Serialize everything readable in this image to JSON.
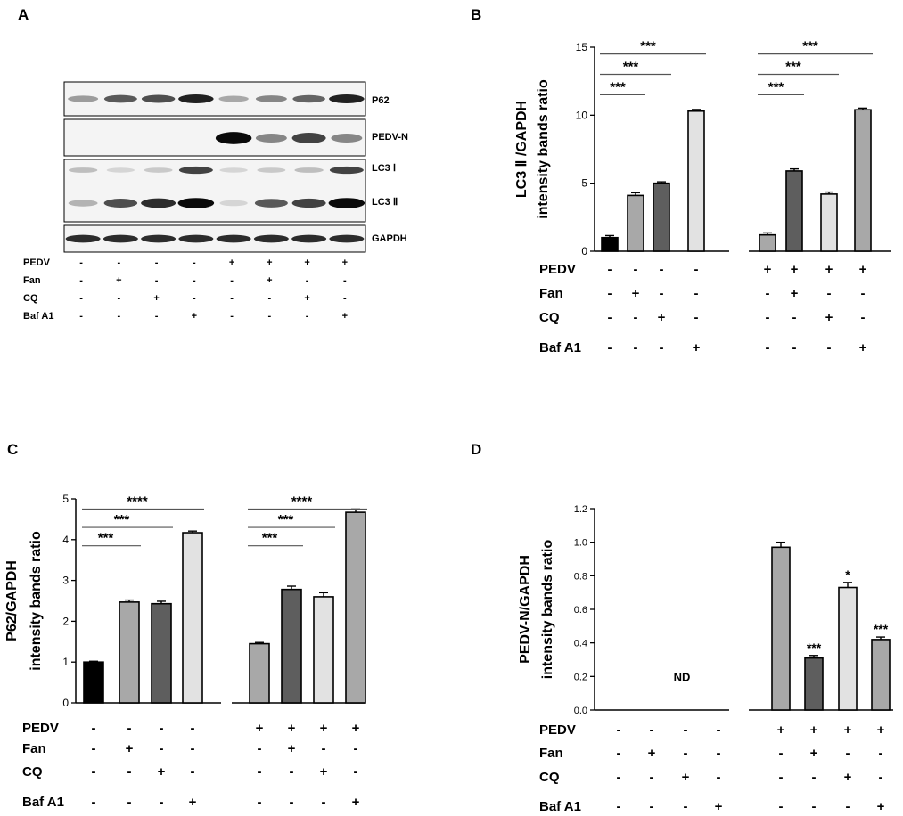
{
  "panels": {
    "A": {
      "letter": "A",
      "blot_labels": [
        "P62",
        "PEDV-N",
        "LC3 Ⅰ",
        "LC3 Ⅱ",
        "GAPDH"
      ],
      "conditions": [
        "PEDV",
        "Fan",
        "CQ",
        "Baf A1"
      ],
      "signs": [
        [
          "-",
          "-",
          "-",
          "-",
          "+",
          "+",
          "+",
          "+"
        ],
        [
          "-",
          "+",
          "-",
          "-",
          "-",
          "+",
          "-",
          "-"
        ],
        [
          "-",
          "-",
          "+",
          "-",
          "-",
          "-",
          "+",
          "-"
        ],
        [
          "-",
          "-",
          "-",
          "+",
          "-",
          "-",
          "-",
          "+"
        ]
      ],
      "band_intensity": {
        "P62": [
          0.35,
          0.65,
          0.7,
          0.9,
          0.3,
          0.45,
          0.6,
          0.9
        ],
        "PEDV-N": [
          0.02,
          0.02,
          0.02,
          0.02,
          1.0,
          0.45,
          0.75,
          0.45
        ],
        "LC3 Ⅰ": [
          0.2,
          0.1,
          0.15,
          0.75,
          0.1,
          0.15,
          0.2,
          0.75
        ],
        "LC3 Ⅱ": [
          0.25,
          0.7,
          0.85,
          1.0,
          0.1,
          0.65,
          0.75,
          1.0
        ],
        "GAPDH": [
          0.85,
          0.85,
          0.85,
          0.85,
          0.85,
          0.85,
          0.85,
          0.85
        ]
      }
    }
  },
  "chart_data": [
    {
      "panel": "B",
      "type": "bar",
      "ylabel": [
        "LC3 Ⅱ /GAPDH",
        "intensity bands ratio"
      ],
      "ylim": [
        0,
        15
      ],
      "yticks": [
        "0",
        "5",
        "10",
        "15"
      ],
      "values": [
        1.0,
        4.1,
        5.0,
        10.3,
        1.2,
        5.9,
        4.2,
        10.4
      ],
      "errors": [
        0.15,
        0.2,
        0.1,
        0.12,
        0.15,
        0.15,
        0.15,
        0.12
      ],
      "colors": [
        "#000000",
        "#a8a8a8",
        "#5e5e5e",
        "#e2e2e2",
        "#a8a8a8",
        "#5e5e5e",
        "#e2e2e2",
        "#a8a8a8"
      ],
      "bar_labels": [
        "",
        "",
        "",
        "",
        "",
        "",
        "",
        ""
      ],
      "brackets": [
        {
          "from": 0,
          "to": 1,
          "level": 11.5,
          "label": "***"
        },
        {
          "from": 0,
          "to": 2,
          "level": 13.0,
          "label": "***"
        },
        {
          "from": 0,
          "to": 3,
          "level": 14.5,
          "label": "***"
        },
        {
          "from": 4,
          "to": 5,
          "level": 11.5,
          "label": "***"
        },
        {
          "from": 4,
          "to": 6,
          "level": 13.0,
          "label": "***"
        },
        {
          "from": 4,
          "to": 7,
          "level": 14.5,
          "label": "***"
        }
      ],
      "center_note": "",
      "conditions": [
        "PEDV",
        "Fan",
        "CQ",
        "Baf A1"
      ],
      "signs": [
        [
          "-",
          "-",
          "-",
          "-",
          "+",
          "+",
          "+",
          "+"
        ],
        [
          "-",
          "+",
          "-",
          "-",
          "-",
          "+",
          "-",
          "-"
        ],
        [
          "-",
          "-",
          "+",
          "-",
          "-",
          "-",
          "+",
          "-"
        ],
        [
          "-",
          "-",
          "-",
          "+",
          "-",
          "-",
          "-",
          "+"
        ]
      ]
    },
    {
      "panel": "C",
      "type": "bar",
      "ylabel": [
        "P62/GAPDH",
        "intensity bands ratio"
      ],
      "ylim": [
        0,
        5
      ],
      "yticks": [
        "0",
        "1",
        "2",
        "3",
        "4",
        "5"
      ],
      "values": [
        1.0,
        2.47,
        2.43,
        4.17,
        1.45,
        2.78,
        2.6,
        4.67
      ],
      "errors": [
        0.02,
        0.05,
        0.06,
        0.04,
        0.03,
        0.08,
        0.1,
        0.08
      ],
      "colors": [
        "#000000",
        "#a8a8a8",
        "#5e5e5e",
        "#e2e2e2",
        "#a8a8a8",
        "#5e5e5e",
        "#e2e2e2",
        "#a8a8a8"
      ],
      "bar_labels": [
        "",
        "",
        "",
        "",
        "",
        "",
        "",
        ""
      ],
      "brackets": [
        {
          "from": 0,
          "to": 1,
          "level": 3.85,
          "label": "***"
        },
        {
          "from": 0,
          "to": 2,
          "level": 4.3,
          "label": "***"
        },
        {
          "from": 0,
          "to": 3,
          "level": 4.75,
          "label": "****"
        },
        {
          "from": 4,
          "to": 5,
          "level": 3.85,
          "label": "***"
        },
        {
          "from": 4,
          "to": 6,
          "level": 4.3,
          "label": "***"
        },
        {
          "from": 4,
          "to": 7,
          "level": 4.75,
          "label": "****"
        }
      ],
      "center_note": "",
      "conditions": [
        "PEDV",
        "Fan",
        "CQ",
        "Baf A1"
      ],
      "signs": [
        [
          "-",
          "-",
          "-",
          "-",
          "+",
          "+",
          "+",
          "+"
        ],
        [
          "-",
          "+",
          "-",
          "-",
          "-",
          "+",
          "-",
          "-"
        ],
        [
          "-",
          "-",
          "+",
          "-",
          "-",
          "-",
          "+",
          "-"
        ],
        [
          "-",
          "-",
          "-",
          "+",
          "-",
          "-",
          "-",
          "+"
        ]
      ]
    },
    {
      "panel": "D",
      "type": "bar",
      "ylabel": [
        "PEDV-N/GAPDH",
        "intensity bands ratio"
      ],
      "ylim": [
        0,
        1.2
      ],
      "yticks": [
        "0.0",
        "0.2",
        "0.4",
        "0.6",
        "0.8",
        "1.0",
        "1.2"
      ],
      "values": [
        0,
        0,
        0,
        0,
        0.97,
        0.31,
        0.73,
        0.42
      ],
      "errors": [
        0,
        0,
        0,
        0,
        0.03,
        0.015,
        0.03,
        0.015
      ],
      "colors": [
        "#000000",
        "#a8a8a8",
        "#5e5e5e",
        "#e2e2e2",
        "#a8a8a8",
        "#5e5e5e",
        "#e2e2e2",
        "#a8a8a8"
      ],
      "bar_labels": [
        "",
        "",
        "",
        "",
        "",
        "***",
        "*",
        "***"
      ],
      "brackets": [],
      "center_note": "ND",
      "conditions": [
        "PEDV",
        "Fan",
        "CQ",
        "Baf A1"
      ],
      "signs": [
        [
          "-",
          "-",
          "-",
          "-",
          "+",
          "+",
          "+",
          "+"
        ],
        [
          "-",
          "+",
          "-",
          "-",
          "-",
          "+",
          "-",
          "-"
        ],
        [
          "-",
          "-",
          "+",
          "-",
          "-",
          "-",
          "+",
          "-"
        ],
        [
          "-",
          "-",
          "-",
          "+",
          "-",
          "-",
          "-",
          "+"
        ]
      ]
    }
  ]
}
